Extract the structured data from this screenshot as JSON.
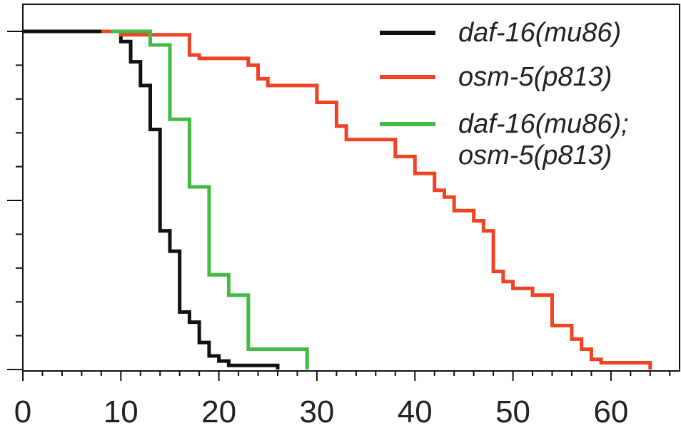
{
  "chart_data": {
    "type": "line",
    "title": "",
    "xlabel": "",
    "ylabel": "",
    "xlim": [
      0,
      67
    ],
    "ylim": [
      0,
      1
    ],
    "x_ticks": [
      0,
      10,
      20,
      30,
      40,
      50,
      60
    ],
    "x_tick_labels": [
      "0",
      "10",
      "20",
      "30",
      "40",
      "50",
      "60"
    ],
    "legend_position": "top-right",
    "step": true,
    "series": [
      {
        "name": "daf-16(mu86)",
        "color": "#111111",
        "x": [
          0,
          10,
          11,
          12,
          13,
          14,
          15,
          16,
          17,
          18,
          19,
          20,
          21,
          26
        ],
        "y": [
          1.0,
          0.97,
          0.91,
          0.84,
          0.71,
          0.41,
          0.35,
          0.17,
          0.14,
          0.08,
          0.04,
          0.025,
          0.012,
          0.0
        ]
      },
      {
        "name": "osm-5(p813)",
        "color": "#ee4423",
        "x": [
          8,
          10,
          17,
          18,
          23,
          24,
          25,
          30,
          32,
          33,
          34,
          38,
          40,
          42,
          43,
          44,
          46,
          47,
          48,
          49,
          50,
          52,
          54,
          56,
          57,
          58,
          59,
          64
        ],
        "y": [
          1.0,
          0.99,
          0.93,
          0.92,
          0.9,
          0.86,
          0.84,
          0.79,
          0.72,
          0.68,
          0.68,
          0.63,
          0.58,
          0.53,
          0.51,
          0.47,
          0.44,
          0.41,
          0.29,
          0.26,
          0.24,
          0.22,
          0.13,
          0.09,
          0.06,
          0.03,
          0.02,
          0.0
        ]
      },
      {
        "name": "daf-16(mu86); osm-5(p813)",
        "color": "#44bb44",
        "x": [
          9,
          13,
          15,
          17,
          19,
          21,
          23,
          29
        ],
        "y": [
          1.0,
          0.96,
          0.74,
          0.54,
          0.28,
          0.22,
          0.06,
          0.0
        ]
      }
    ]
  },
  "legend": {
    "items": [
      {
        "lines": [
          "daf-16(mu86)"
        ],
        "color": "#111111"
      },
      {
        "lines": [
          "osm-5(p813)"
        ],
        "color": "#ee4423"
      },
      {
        "lines": [
          "daf-16(mu86);",
          "osm-5(p813)"
        ],
        "color": "#44bb44"
      }
    ]
  }
}
